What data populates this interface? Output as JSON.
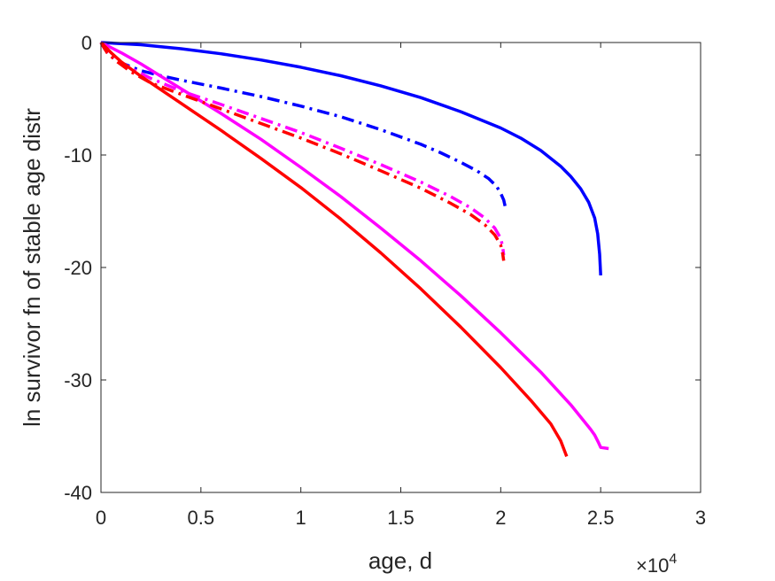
{
  "chart_data": {
    "type": "line",
    "title": "",
    "xlabel": "age, d",
    "ylabel": "ln survivor fn of stable age distr",
    "x_multiplier_label": "×10",
    "x_multiplier_exponent": "4",
    "xlim": [
      0,
      30000
    ],
    "ylim": [
      -40,
      0
    ],
    "xticks": [
      0,
      5000,
      10000,
      15000,
      20000,
      25000,
      30000
    ],
    "xtick_labels": [
      "0",
      "0.5",
      "1",
      "1.5",
      "2",
      "2.5",
      "3"
    ],
    "yticks": [
      0,
      -10,
      -20,
      -30,
      -40
    ],
    "ytick_labels": [
      "0",
      "-10",
      "-20",
      "-30",
      "-40"
    ],
    "grid": false,
    "legend": "none",
    "series": [
      {
        "color": "#0000ff",
        "style": "solid",
        "points": [
          [
            0,
            0
          ],
          [
            2000,
            -0.2
          ],
          [
            4000,
            -0.55
          ],
          [
            6000,
            -1.0
          ],
          [
            8000,
            -1.55
          ],
          [
            10000,
            -2.2
          ],
          [
            12000,
            -2.95
          ],
          [
            14000,
            -3.85
          ],
          [
            16000,
            -4.9
          ],
          [
            18000,
            -6.15
          ],
          [
            20000,
            -7.6
          ],
          [
            21000,
            -8.5
          ],
          [
            22000,
            -9.6
          ],
          [
            23000,
            -11.0
          ],
          [
            23500,
            -11.9
          ],
          [
            24000,
            -13.0
          ],
          [
            24400,
            -14.2
          ],
          [
            24700,
            -15.6
          ],
          [
            24850,
            -17.0
          ],
          [
            24950,
            -18.8
          ],
          [
            25000,
            -20.7
          ]
        ]
      },
      {
        "color": "#0000ff",
        "style": "dashdot",
        "points": [
          [
            0,
            0
          ],
          [
            200,
            -0.6
          ],
          [
            500,
            -1.2
          ],
          [
            1000,
            -1.8
          ],
          [
            2000,
            -2.5
          ],
          [
            3000,
            -2.95
          ],
          [
            4000,
            -3.35
          ],
          [
            6000,
            -4.05
          ],
          [
            8000,
            -4.8
          ],
          [
            10000,
            -5.65
          ],
          [
            12000,
            -6.6
          ],
          [
            14000,
            -7.75
          ],
          [
            16000,
            -9.05
          ],
          [
            17000,
            -9.8
          ],
          [
            18000,
            -10.65
          ],
          [
            18800,
            -11.4
          ],
          [
            19400,
            -12.1
          ],
          [
            19800,
            -12.8
          ],
          [
            20000,
            -13.4
          ],
          [
            20150,
            -14.0
          ],
          [
            20250,
            -14.8
          ]
        ]
      },
      {
        "color": "#ff00ff",
        "style": "solid",
        "points": [
          [
            0,
            0
          ],
          [
            1000,
            -0.9
          ],
          [
            2000,
            -1.9
          ],
          [
            3000,
            -3.0
          ],
          [
            4000,
            -4.1
          ],
          [
            6000,
            -6.3
          ],
          [
            8000,
            -8.6
          ],
          [
            10000,
            -11.1
          ],
          [
            12000,
            -13.7
          ],
          [
            14000,
            -16.5
          ],
          [
            16000,
            -19.4
          ],
          [
            18000,
            -22.5
          ],
          [
            20000,
            -25.8
          ],
          [
            22000,
            -29.3
          ],
          [
            23500,
            -32.2
          ],
          [
            24500,
            -34.4
          ],
          [
            24700,
            -34.9
          ],
          [
            24900,
            -35.6
          ],
          [
            25000,
            -36.0
          ],
          [
            25400,
            -36.1
          ]
        ]
      },
      {
        "color": "#ff00ff",
        "style": "dashdot",
        "points": [
          [
            0,
            0
          ],
          [
            300,
            -0.8
          ],
          [
            800,
            -1.5
          ],
          [
            1500,
            -2.3
          ],
          [
            2500,
            -3.2
          ],
          [
            4000,
            -4.3
          ],
          [
            6000,
            -5.5
          ],
          [
            8000,
            -6.75
          ],
          [
            10000,
            -8.0
          ],
          [
            12000,
            -9.4
          ],
          [
            14000,
            -10.85
          ],
          [
            16000,
            -12.4
          ],
          [
            17500,
            -13.7
          ],
          [
            18500,
            -14.7
          ],
          [
            19200,
            -15.6
          ],
          [
            19700,
            -16.5
          ],
          [
            20000,
            -17.4
          ],
          [
            20100,
            -18.2
          ],
          [
            20150,
            -18.9
          ]
        ]
      },
      {
        "color": "#ff0000",
        "style": "solid",
        "points": [
          [
            0,
            0
          ],
          [
            500,
            -0.9
          ],
          [
            1000,
            -1.7
          ],
          [
            2000,
            -3.0
          ],
          [
            3000,
            -4.2
          ],
          [
            4000,
            -5.4
          ],
          [
            6000,
            -7.8
          ],
          [
            8000,
            -10.3
          ],
          [
            10000,
            -12.9
          ],
          [
            12000,
            -15.7
          ],
          [
            14000,
            -18.7
          ],
          [
            16000,
            -21.9
          ],
          [
            18000,
            -25.3
          ],
          [
            20000,
            -28.9
          ],
          [
            21500,
            -31.8
          ],
          [
            22500,
            -33.9
          ],
          [
            23000,
            -35.4
          ],
          [
            23150,
            -36.1
          ],
          [
            23300,
            -36.8
          ]
        ]
      },
      {
        "color": "#ff0000",
        "style": "dashdot",
        "points": [
          [
            0,
            0
          ],
          [
            300,
            -0.9
          ],
          [
            800,
            -1.7
          ],
          [
            1500,
            -2.6
          ],
          [
            2500,
            -3.6
          ],
          [
            4000,
            -4.6
          ],
          [
            6000,
            -5.9
          ],
          [
            8000,
            -7.2
          ],
          [
            10000,
            -8.5
          ],
          [
            12000,
            -9.9
          ],
          [
            14000,
            -11.4
          ],
          [
            16000,
            -12.95
          ],
          [
            17500,
            -14.3
          ],
          [
            18500,
            -15.3
          ],
          [
            19200,
            -16.2
          ],
          [
            19700,
            -17.1
          ],
          [
            20000,
            -18.0
          ],
          [
            20100,
            -18.8
          ],
          [
            20150,
            -19.4
          ]
        ]
      }
    ]
  }
}
